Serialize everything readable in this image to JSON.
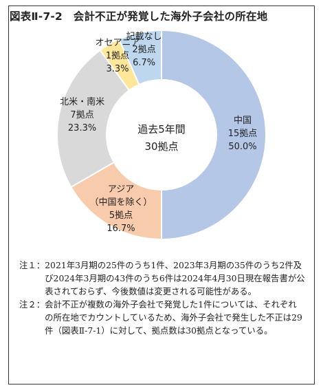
{
  "title": "図表Ⅱ-7-2　会計不正が発覚した海外子会社の所在地",
  "center_label": [
    "過去5年間",
    "30拠点"
  ],
  "chart_data": {
    "type": "pie",
    "donut": true,
    "title": "図表Ⅱ-7-2　会計不正が発覚した海外子会社の所在地",
    "unit": "拠点",
    "total": 30,
    "slices": [
      {
        "label": "中国",
        "lines": [
          "中国",
          "15拠点",
          "50.0%"
        ],
        "value": 15,
        "percent": 50.0,
        "color": "#b4c7e7"
      },
      {
        "label": "アジア（中国を除く）",
        "lines": [
          "アジア",
          "（中国を除く）",
          "5拠点",
          "16.7%"
        ],
        "value": 5,
        "percent": 16.7,
        "color": "#f8cbad"
      },
      {
        "label": "北米・南米",
        "lines": [
          "北米・南米",
          "7拠点",
          "23.3%"
        ],
        "value": 7,
        "percent": 23.3,
        "color": "#d9d9d9"
      },
      {
        "label": "オセアニア",
        "lines": [
          "オセアニア",
          "1拠点",
          "3.3%"
        ],
        "value": 1,
        "percent": 3.3,
        "color": "#ffe699"
      },
      {
        "label": "記載なし",
        "lines": [
          "記載なし",
          "2拠点",
          "6.7%"
        ],
        "value": 2,
        "percent": 6.7,
        "color": "#bdd7ee"
      }
    ]
  },
  "notes": [
    {
      "key": "注１：",
      "text": "2021年3月期の25件のうち1件、2023年3月期の35件のうち2件及び2024年3月期の43件のうち6件は2024年4月30日現在報告書が公表されておらず、今後数値は変更される可能性がある。"
    },
    {
      "key": "注２：",
      "text": "会計不正が複数の海外子会社で発覚した1件については、それぞれの所在地でカウントしているため、海外子会社で発生した不正は29件（図表Ⅱ-7-1）に対して、拠点数は30拠点となっている。"
    }
  ]
}
